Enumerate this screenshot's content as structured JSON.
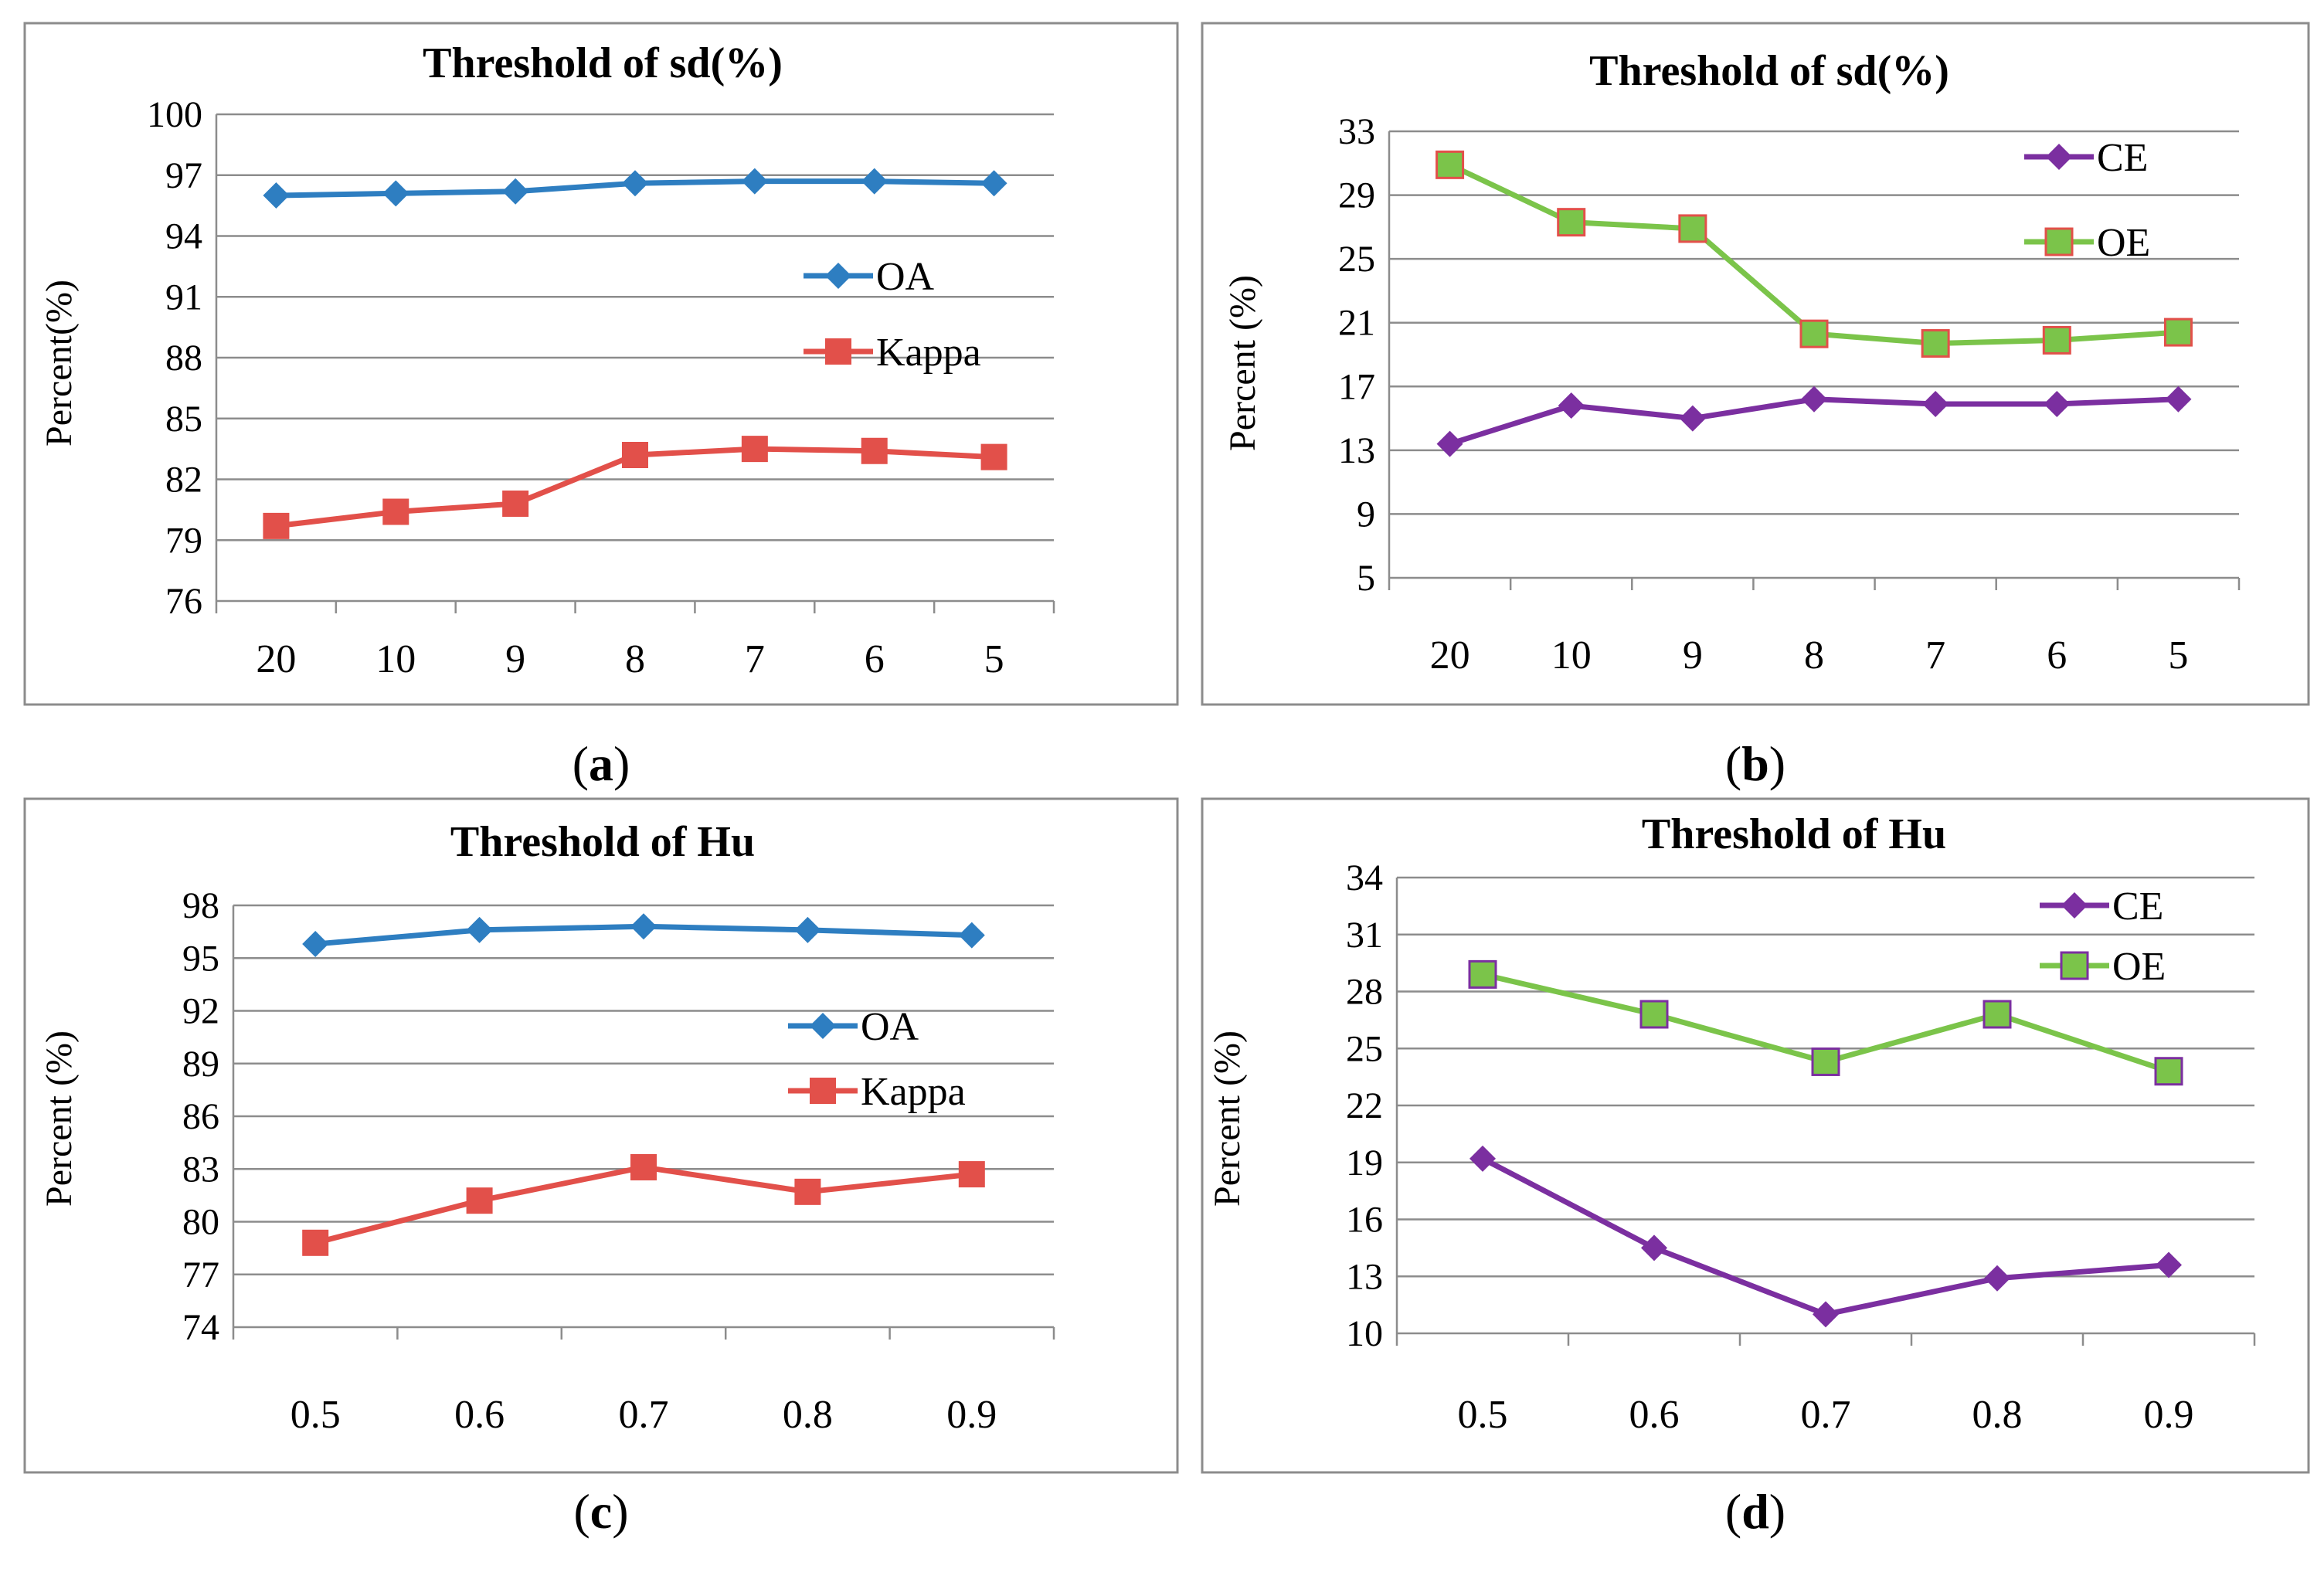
{
  "chart_data": [
    {
      "id": "a",
      "type": "line",
      "title": "Threshold of sd(%)",
      "caption_letter": "a",
      "xlabel": "",
      "ylabel": "Percent(%)",
      "categories": [
        "20",
        "10",
        "9",
        "8",
        "7",
        "6",
        "5"
      ],
      "ylim": [
        76,
        100
      ],
      "yticks": [
        "100",
        "97",
        "94",
        "91",
        "88",
        "85",
        "82",
        "79",
        "76"
      ],
      "grid": true,
      "legend": "right",
      "series": [
        {
          "name": "OA",
          "color": "#2E7EC1",
          "marker": "diamond",
          "values": [
            96.0,
            96.1,
            96.2,
            96.6,
            96.7,
            96.7,
            96.6
          ]
        },
        {
          "name": "Kappa",
          "color": "#E2504A",
          "marker": "square",
          "values": [
            79.7,
            80.4,
            80.8,
            83.2,
            83.5,
            83.4,
            83.1
          ]
        }
      ]
    },
    {
      "id": "b",
      "type": "line",
      "title": "Threshold of sd(%)",
      "caption_letter": "b",
      "xlabel": "",
      "ylabel": "Percent (%)",
      "categories": [
        "20",
        "10",
        "9",
        "8",
        "7",
        "6",
        "5"
      ],
      "ylim": [
        5,
        33
      ],
      "yticks": [
        "33",
        "29",
        "25",
        "21",
        "17",
        "13",
        "9",
        "5"
      ],
      "grid": true,
      "legend": "top-right",
      "series": [
        {
          "name": "CE",
          "color": "#7B2FA0",
          "marker": "diamond",
          "values": [
            13.4,
            15.8,
            15.0,
            16.2,
            15.9,
            15.9,
            16.2
          ]
        },
        {
          "name": "OE",
          "color": "#7BC44A",
          "marker": "square",
          "edge": "#E2504A",
          "values": [
            30.9,
            27.3,
            26.9,
            20.3,
            19.7,
            19.9,
            20.4
          ]
        }
      ]
    },
    {
      "id": "c",
      "type": "line",
      "title": "Threshold of Hu",
      "caption_letter": "c",
      "xlabel": "",
      "ylabel": "Percent (%)",
      "categories": [
        "0.5",
        "0.6",
        "0.7",
        "0.8",
        "0.9"
      ],
      "ylim": [
        74,
        98
      ],
      "yticks": [
        "98",
        "95",
        "92",
        "89",
        "86",
        "83",
        "80",
        "77",
        "74"
      ],
      "grid": true,
      "legend": "right",
      "series": [
        {
          "name": "OA",
          "color": "#2E7EC1",
          "marker": "diamond",
          "values": [
            95.8,
            96.6,
            96.8,
            96.6,
            96.3
          ]
        },
        {
          "name": "Kappa",
          "color": "#E2504A",
          "marker": "square",
          "values": [
            78.8,
            81.2,
            83.1,
            81.7,
            82.7
          ]
        }
      ]
    },
    {
      "id": "d",
      "type": "line",
      "title": "Threshold of Hu",
      "caption_letter": "d",
      "xlabel": "",
      "ylabel": "Percent (%)",
      "categories": [
        "0.5",
        "0.6",
        "0.7",
        "0.8",
        "0.9"
      ],
      "ylim": [
        10,
        34
      ],
      "yticks": [
        "34",
        "31",
        "28",
        "25",
        "22",
        "19",
        "16",
        "13",
        "10"
      ],
      "grid": true,
      "legend": "top-right",
      "series": [
        {
          "name": "CE",
          "color": "#7B2FA0",
          "marker": "diamond",
          "values": [
            19.2,
            14.5,
            11.0,
            12.9,
            13.6
          ]
        },
        {
          "name": "OE",
          "color": "#7BC44A",
          "marker": "square",
          "edge": "#7B2FA0",
          "values": [
            28.9,
            26.8,
            24.3,
            26.8,
            23.8
          ]
        }
      ]
    }
  ]
}
